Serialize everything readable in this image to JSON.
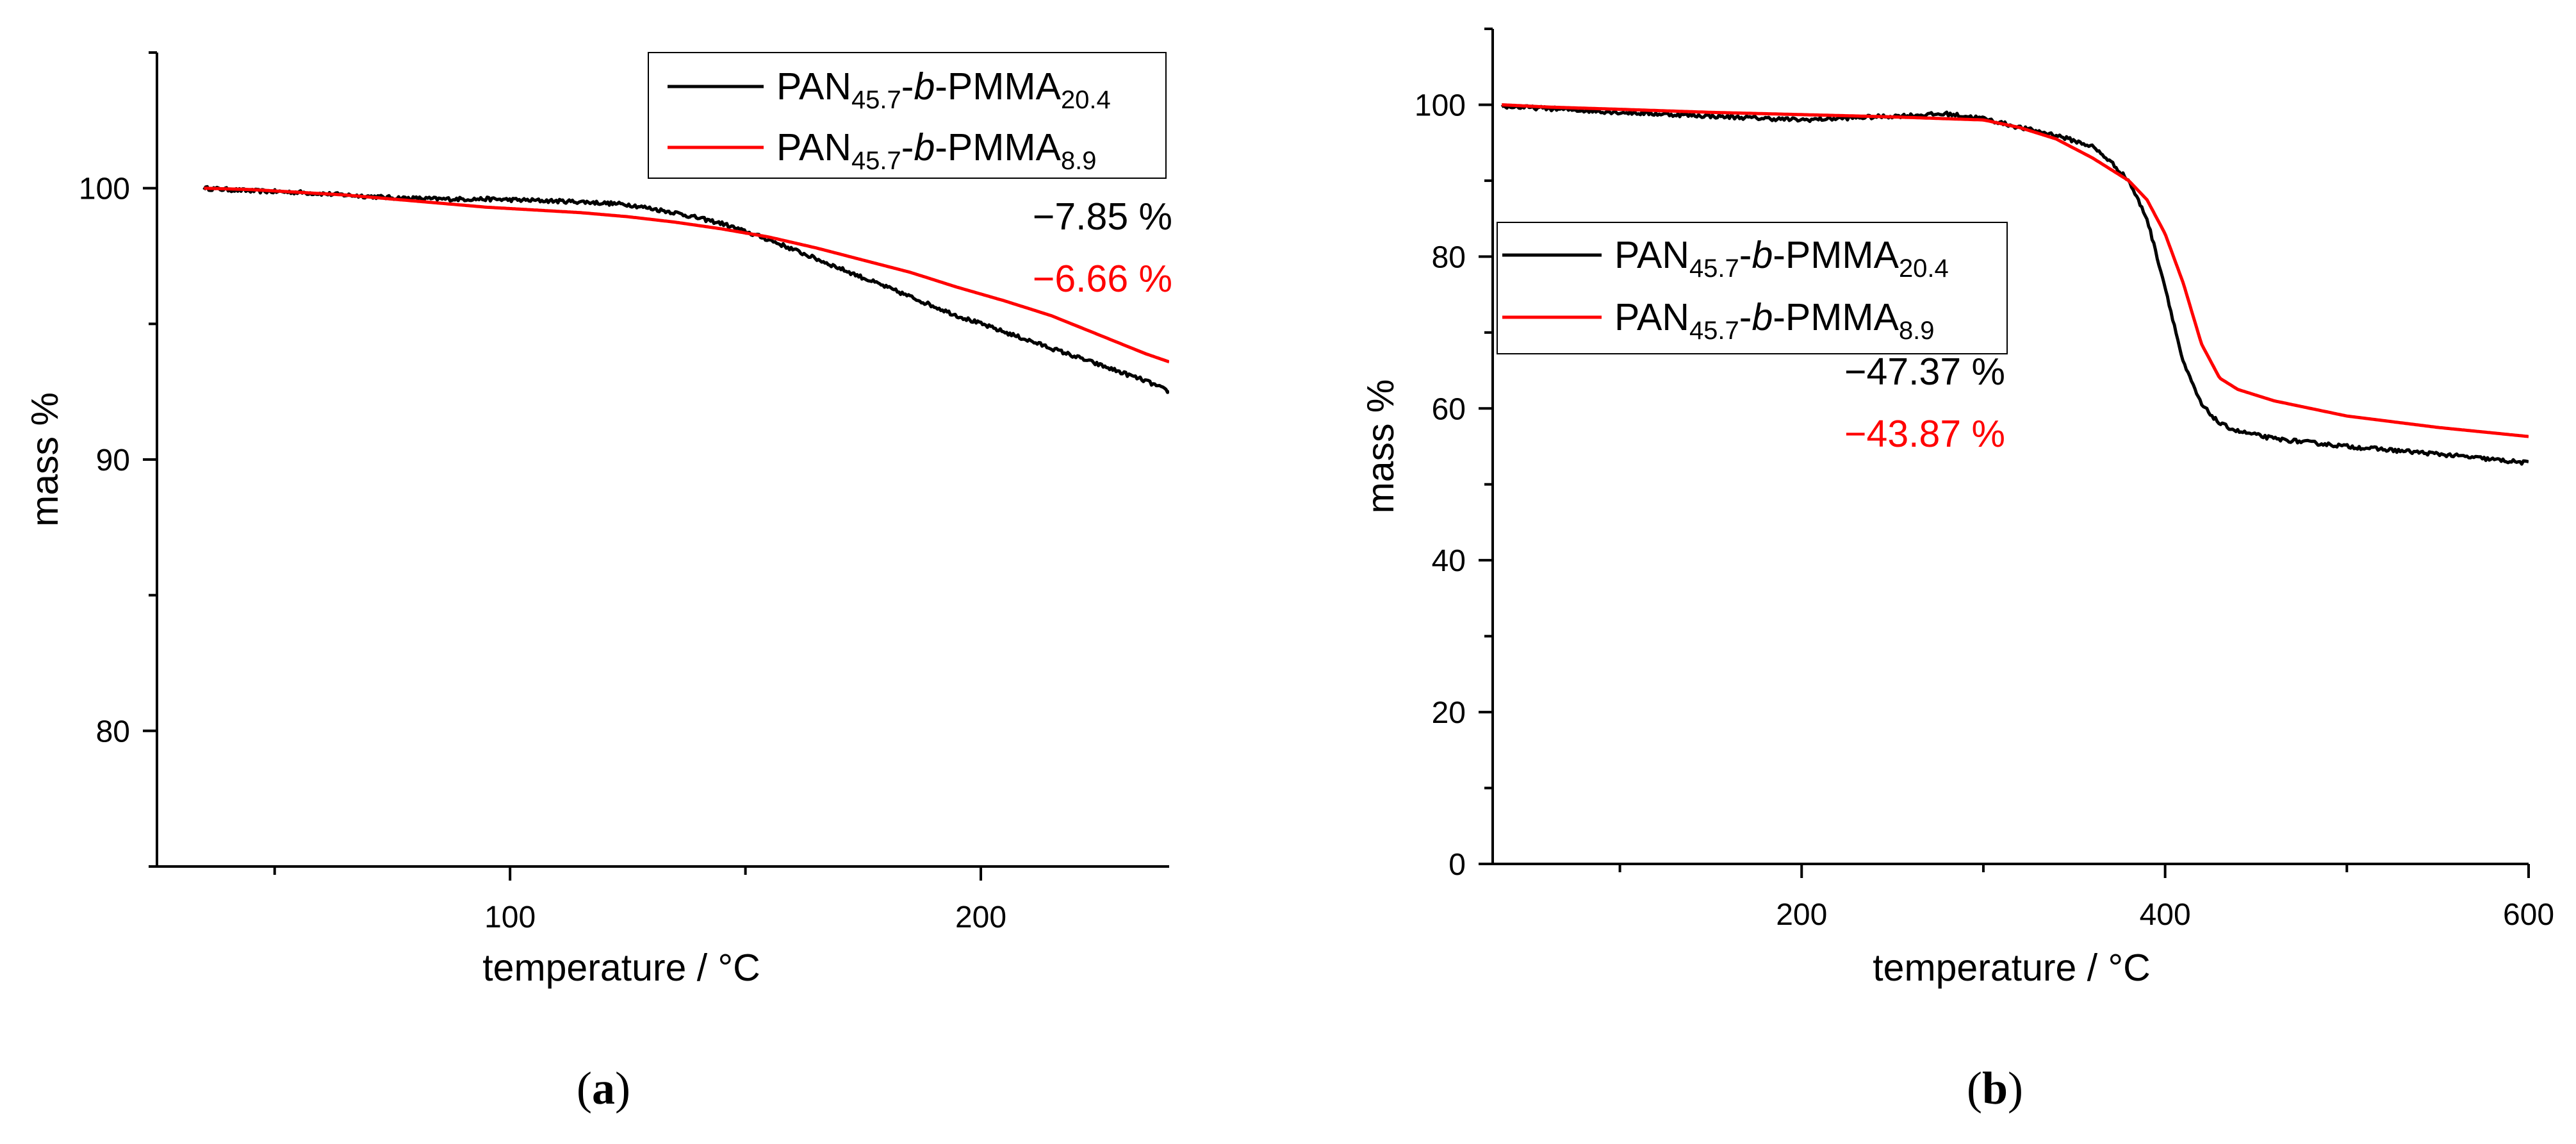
{
  "figure": {
    "colors": {
      "black": "#000000",
      "red": "#ff0000"
    }
  },
  "chart_data": [
    {
      "type": "line",
      "panel_label": {
        "open": "(",
        "letter": "a",
        "close": ")"
      },
      "xlabel": "temperature / °C",
      "ylabel": "mass %",
      "xlim": [
        25,
        240
      ],
      "ylim": [
        75,
        105
      ],
      "x_major_ticks": [
        100,
        200
      ],
      "x_minor_ticks": [
        50,
        150
      ],
      "x_tick_labels": [
        "100",
        "200"
      ],
      "y_major_ticks": [
        80,
        90,
        100
      ],
      "y_minor_ticks": [
        75,
        85,
        95,
        105
      ],
      "y_tick_labels": [
        "80",
        "90",
        "100"
      ],
      "grid": false,
      "legend_position": "top-right",
      "series": [
        {
          "name_parts": [
            "PAN",
            "45.7",
            "-",
            "b",
            "-PMMA",
            "20.4"
          ],
          "color": "#000000",
          "x": [
            35,
            45,
            55,
            65,
            75,
            85,
            95,
            105,
            115,
            125,
            135,
            145,
            155,
            165,
            175,
            185,
            195,
            205,
            215,
            225,
            235,
            240
          ],
          "y": [
            100.0,
            99.9,
            99.85,
            99.75,
            99.65,
            99.6,
            99.6,
            99.55,
            99.5,
            99.4,
            99.1,
            98.7,
            98.1,
            97.4,
            96.7,
            96.0,
            95.3,
            94.7,
            94.1,
            93.5,
            92.9,
            92.5
          ],
          "noise": 0.07
        },
        {
          "name_parts": [
            "PAN",
            "45.7",
            "-",
            "b",
            "-PMMA",
            "8.9"
          ],
          "color": "#ff0000",
          "x": [
            35,
            45,
            55,
            65,
            75,
            85,
            95,
            105,
            115,
            125,
            135,
            145,
            155,
            165,
            175,
            185,
            195,
            205,
            215,
            225,
            235,
            240
          ],
          "y": [
            100.0,
            99.95,
            99.85,
            99.75,
            99.6,
            99.45,
            99.3,
            99.2,
            99.1,
            98.95,
            98.75,
            98.5,
            98.2,
            97.8,
            97.35,
            96.9,
            96.35,
            95.85,
            95.3,
            94.6,
            93.9,
            93.6
          ],
          "noise": 0.0
        }
      ],
      "annotations": [
        {
          "text": "−7.85 %",
          "color": "#000000"
        },
        {
          "text": "−6.66 %",
          "color": "#ff0000"
        }
      ]
    },
    {
      "type": "line",
      "panel_label": {
        "open": "(",
        "letter": "b",
        "close": ")"
      },
      "xlabel": "temperature / °C",
      "ylabel": "mass %",
      "xlim": [
        30,
        600
      ],
      "ylim": [
        0,
        110
      ],
      "x_major_ticks": [
        200,
        400,
        600
      ],
      "x_minor_ticks": [
        100,
        300,
        500
      ],
      "x_tick_labels": [
        "200",
        "400",
        "600"
      ],
      "y_major_ticks": [
        0,
        20,
        40,
        60,
        80,
        100
      ],
      "y_minor_ticks": [
        10,
        30,
        50,
        70,
        90,
        110
      ],
      "y_tick_labels": [
        "0",
        "20",
        "40",
        "60",
        "80",
        "100"
      ],
      "grid": false,
      "legend_position": "center-left",
      "series": [
        {
          "name_parts": [
            "PAN",
            "45.7",
            "-",
            "b",
            "-PMMA",
            "20.4"
          ],
          "color": "#000000",
          "x": [
            35,
            60,
            100,
            150,
            200,
            250,
            280,
            300,
            320,
            340,
            360,
            370,
            380,
            390,
            400,
            410,
            420,
            430,
            440,
            460,
            500,
            550,
            600
          ],
          "y": [
            99.8,
            99.5,
            99.0,
            98.5,
            98.0,
            98.5,
            98.8,
            98.2,
            97.0,
            96.0,
            94.5,
            92.5,
            90.0,
            85.0,
            76.0,
            66.0,
            60.5,
            58.0,
            57.0,
            56.0,
            55.0,
            54.0,
            52.8
          ],
          "noise": 0.25
        },
        {
          "name_parts": [
            "PAN",
            "45.7",
            "-",
            "b",
            "-PMMA",
            "8.9"
          ],
          "color": "#ff0000",
          "x": [
            35,
            60,
            100,
            150,
            200,
            250,
            300,
            320,
            340,
            360,
            380,
            390,
            400,
            410,
            420,
            430,
            440,
            460,
            500,
            550,
            600
          ],
          "y": [
            100.0,
            99.7,
            99.4,
            99.0,
            98.7,
            98.4,
            98.0,
            97.0,
            95.5,
            93.0,
            90.0,
            87.5,
            83.0,
            76.5,
            68.5,
            64.0,
            62.5,
            61.0,
            59.0,
            57.5,
            56.3
          ],
          "noise": 0.0
        }
      ],
      "annotations": [
        {
          "text": "−47.37 %",
          "color": "#000000"
        },
        {
          "text": "−43.87 %",
          "color": "#ff0000"
        }
      ]
    }
  ]
}
